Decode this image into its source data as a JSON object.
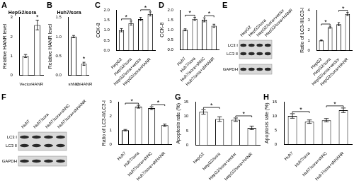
{
  "chart_data": [
    {
      "panel": "A",
      "type": "bar",
      "title": "HepG2/sora",
      "y_label": "Relative HANR level",
      "categories": [
        "Vector",
        "HANR"
      ],
      "values": [
        1.0,
        2.6
      ],
      "errors": [
        0.08,
        0.25
      ],
      "significance": [
        {
          "bars": [
            1
          ],
          "label": "*"
        }
      ],
      "color": "#ffffff",
      "ylim": [
        0,
        3
      ],
      "yticks": [
        0,
        1,
        2,
        3
      ],
      "grid": false
    },
    {
      "panel": "B",
      "type": "bar",
      "title": "Huh7/sora",
      "y_label": "Relative HANR level",
      "categories": [
        "shNC",
        "shHANR"
      ],
      "values": [
        1.0,
        0.3
      ],
      "errors": [
        0.03,
        0.04
      ],
      "significance": [
        {
          "bars": [
            1
          ],
          "label": "*"
        }
      ],
      "color": "#ffffff",
      "ylim": [
        0,
        1.5
      ],
      "yticks": [
        {
          "value": 0,
          "label": "0.0"
        },
        {
          "value": 0.5,
          "label": "0.5"
        },
        {
          "value": 1,
          "label": "1.0"
        },
        {
          "value": 1.5,
          "label": "1.5"
        }
      ],
      "grid": false
    },
    {
      "panel": "C",
      "type": "bar",
      "y_label": "CCK-8",
      "categories": [
        "HepG2",
        "HepG2/sora",
        "HepG2/sora+vector",
        "HepG2/sora+HANR"
      ],
      "values": [
        1.0,
        1.35,
        1.55,
        1.8
      ],
      "errors": [
        0.08,
        0.1,
        0.08,
        0.1
      ],
      "significance": [
        {
          "bars": [
            0,
            1
          ],
          "label": "*"
        },
        {
          "bars": [
            2,
            3
          ],
          "label": "*"
        }
      ],
      "color": "#ffffff",
      "ylim": [
        0,
        2
      ],
      "yticks": [
        {
          "value": 0,
          "label": "0.0"
        },
        {
          "value": 0.5,
          "label": "0.5"
        },
        {
          "value": 1,
          "label": "1.0"
        },
        {
          "value": 1.5,
          "label": "1.5"
        },
        {
          "value": 2,
          "label": "2.0"
        }
      ],
      "grid": false
    },
    {
      "panel": "D",
      "type": "bar",
      "y_label": "CCK-8",
      "categories": [
        "Huh7",
        "Huh7/sora",
        "Huh7/sora+shNC",
        "Huh7/sora+shHANR"
      ],
      "values": [
        1.0,
        1.55,
        1.5,
        1.2
      ],
      "errors": [
        0.05,
        0.08,
        0.1,
        0.08
      ],
      "significance": [
        {
          "bars": [
            0,
            1
          ],
          "label": "*"
        },
        {
          "bars": [
            2,
            3
          ],
          "label": "*"
        }
      ],
      "color": "#ffffff",
      "ylim": [
        0,
        2
      ],
      "yticks": [
        {
          "value": 0,
          "label": "0.0"
        },
        {
          "value": 0.5,
          "label": "0.5"
        },
        {
          "value": 1,
          "label": "1.0"
        },
        {
          "value": 1.5,
          "label": "1.5"
        },
        {
          "value": 2,
          "label": "2.0"
        }
      ],
      "grid": false
    },
    {
      "panel": "E",
      "type": "bar",
      "y_label": "Ratio of LC3-II/LC3-I",
      "categories": [
        "HepG2",
        "HepG2/sora",
        "HepG2/sora+vector",
        "HepG2/sora+HANR"
      ],
      "values": [
        1.0,
        2.3,
        2.6,
        3.6
      ],
      "errors": [
        0.05,
        0.1,
        0.15,
        0.15
      ],
      "significance": [
        {
          "bars": [
            0,
            1
          ],
          "label": "*"
        },
        {
          "bars": [
            2,
            3
          ],
          "label": "*"
        }
      ],
      "color": "#ffffff",
      "ylim": [
        0,
        4
      ],
      "yticks": [
        0,
        1,
        2,
        3,
        4
      ],
      "grid": false,
      "blot": {
        "bands": [
          "LC3 I",
          "LC3 II",
          "GAPDH"
        ]
      }
    },
    {
      "panel": "F",
      "type": "bar",
      "y_label": "Ratio of LC3-II/LC3-I",
      "categories": [
        "Huh7",
        "Huh7/sora",
        "Huh7/sora+shNC",
        "Huh7/sora+shHANR"
      ],
      "values": [
        1.0,
        2.65,
        2.55,
        1.35
      ],
      "errors": [
        0.05,
        0.1,
        0.1,
        0.08
      ],
      "significance": [
        {
          "bars": [
            0,
            1
          ],
          "label": "*"
        },
        {
          "bars": [
            2,
            3
          ],
          "label": "*"
        }
      ],
      "color": "#ffffff",
      "ylim": [
        0,
        3
      ],
      "yticks": [
        0,
        1,
        2,
        3
      ],
      "grid": false,
      "blot": {
        "bands": [
          "LC3 I",
          "LC3 II",
          "GAPDH"
        ]
      }
    },
    {
      "panel": "G",
      "type": "bar",
      "y_label": "Apoptosis rate (%)",
      "categories": [
        "HepG2",
        "HepG2/sora",
        "HepG2/sora+vector",
        "HepG2/sora+HANR"
      ],
      "values": [
        11.5,
        9.0,
        8.8,
        6.0
      ],
      "errors": [
        0.8,
        0.8,
        0.6,
        0.6
      ],
      "significance": [
        {
          "bars": [
            0,
            1
          ],
          "label": "*"
        },
        {
          "bars": [
            2,
            3
          ],
          "label": "*"
        }
      ],
      "color": "#ffffff",
      "ylim": [
        0,
        15
      ],
      "yticks": [
        0,
        5,
        10,
        15
      ],
      "grid": false
    },
    {
      "panel": "H",
      "type": "bar",
      "y_label": "Apoptosis rate (%)",
      "categories": [
        "Huh7",
        "Huh7/sora",
        "Huh7/sora+shNC",
        "Huh7/sora+shHANR"
      ],
      "values": [
        10.0,
        8.0,
        8.5,
        12.0
      ],
      "errors": [
        0.8,
        0.6,
        0.6,
        0.8
      ],
      "significance": [
        {
          "bars": [
            0,
            1
          ],
          "label": "*"
        },
        {
          "bars": [
            2,
            3
          ],
          "label": "*"
        }
      ],
      "color": "#ffffff",
      "ylim": [
        0,
        15
      ],
      "yticks": [
        0,
        5,
        10,
        15
      ],
      "grid": false
    }
  ]
}
